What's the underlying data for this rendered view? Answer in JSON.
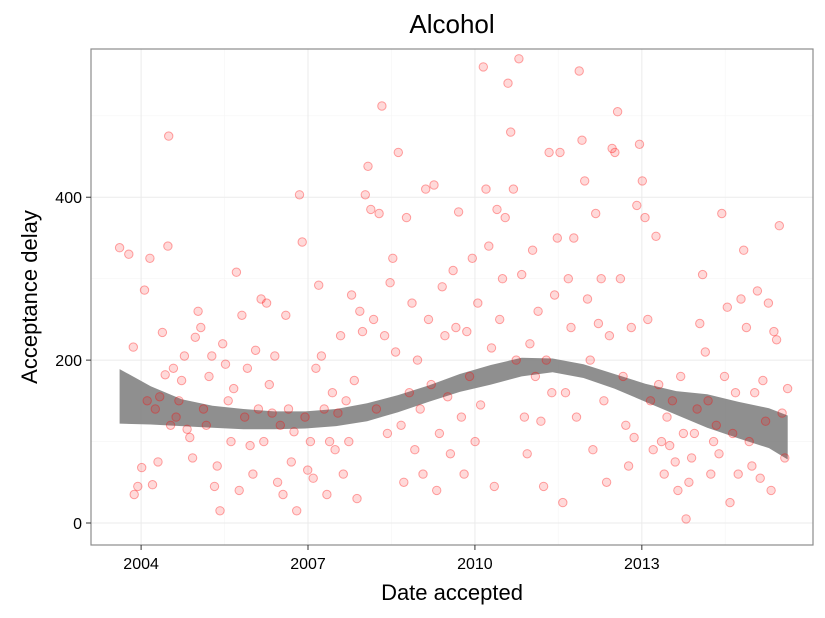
{
  "chart_data": {
    "type": "scatter",
    "title": "Alcohol",
    "xlabel": "Date accepted",
    "ylabel": "Acceptance delay",
    "x_ticks": [
      "2004",
      "2007",
      "2010",
      "2013"
    ],
    "y_ticks": [
      "0",
      "200",
      "400"
    ],
    "xlim": [
      "2003-02-06",
      "2016-01-30"
    ],
    "ylim": [
      -27,
      582
    ],
    "grid": true,
    "point_color": "#ff0000",
    "ribbon_color": "#808080",
    "points": [
      [
        "2003-08-13",
        338
      ],
      [
        "2003-10-12",
        330
      ],
      [
        "2003-11-11",
        216
      ],
      [
        "2003-11-17",
        35
      ],
      [
        "2003-12-10",
        45
      ],
      [
        "2004-01-05",
        68
      ],
      [
        "2004-01-23",
        286
      ],
      [
        "2004-02-10",
        150
      ],
      [
        "2004-02-28",
        325
      ],
      [
        "2004-03-16",
        47
      ],
      [
        "2004-04-03",
        140
      ],
      [
        "2004-04-21",
        75
      ],
      [
        "2004-05-02",
        155
      ],
      [
        "2004-05-20",
        234
      ],
      [
        "2004-06-07",
        182
      ],
      [
        "2004-06-25",
        340
      ],
      [
        "2004-06-30",
        475
      ],
      [
        "2004-07-13",
        120
      ],
      [
        "2004-07-31",
        190
      ],
      [
        "2004-08-18",
        130
      ],
      [
        "2004-09-05",
        150
      ],
      [
        "2004-09-23",
        175
      ],
      [
        "2004-10-11",
        205
      ],
      [
        "2004-10-29",
        115
      ],
      [
        "2004-11-16",
        105
      ],
      [
        "2004-12-04",
        80
      ],
      [
        "2004-12-22",
        228
      ],
      [
        "2005-01-09",
        260
      ],
      [
        "2005-01-27",
        240
      ],
      [
        "2005-02-14",
        140
      ],
      [
        "2005-03-04",
        120
      ],
      [
        "2005-03-22",
        180
      ],
      [
        "2005-04-09",
        205
      ],
      [
        "2005-04-27",
        45
      ],
      [
        "2005-05-15",
        70
      ],
      [
        "2005-06-02",
        15
      ],
      [
        "2005-06-20",
        220
      ],
      [
        "2005-07-08",
        195
      ],
      [
        "2005-07-26",
        150
      ],
      [
        "2005-08-13",
        100
      ],
      [
        "2005-08-31",
        165
      ],
      [
        "2005-09-18",
        308
      ],
      [
        "2005-10-06",
        40
      ],
      [
        "2005-10-24",
        255
      ],
      [
        "2005-11-11",
        130
      ],
      [
        "2005-11-29",
        190
      ],
      [
        "2005-12-17",
        95
      ],
      [
        "2006-01-04",
        60
      ],
      [
        "2006-01-22",
        212
      ],
      [
        "2006-02-09",
        140
      ],
      [
        "2006-02-27",
        275
      ],
      [
        "2006-03-17",
        100
      ],
      [
        "2006-04-04",
        270
      ],
      [
        "2006-04-22",
        170
      ],
      [
        "2006-05-10",
        135
      ],
      [
        "2006-05-28",
        205
      ],
      [
        "2006-06-15",
        50
      ],
      [
        "2006-07-03",
        120
      ],
      [
        "2006-07-21",
        35
      ],
      [
        "2006-08-08",
        255
      ],
      [
        "2006-08-26",
        140
      ],
      [
        "2006-09-13",
        75
      ],
      [
        "2006-10-01",
        112
      ],
      [
        "2006-10-19",
        15
      ],
      [
        "2006-11-06",
        403
      ],
      [
        "2006-11-24",
        345
      ],
      [
        "2006-12-12",
        130
      ],
      [
        "2006-12-30",
        65
      ],
      [
        "2007-01-17",
        100
      ],
      [
        "2007-02-04",
        55
      ],
      [
        "2007-02-22",
        190
      ],
      [
        "2007-03-12",
        292
      ],
      [
        "2007-03-30",
        205
      ],
      [
        "2007-04-17",
        140
      ],
      [
        "2007-05-05",
        35
      ],
      [
        "2007-05-23",
        100
      ],
      [
        "2007-06-10",
        160
      ],
      [
        "2007-06-28",
        90
      ],
      [
        "2007-07-16",
        135
      ],
      [
        "2007-08-03",
        230
      ],
      [
        "2007-08-21",
        60
      ],
      [
        "2007-09-08",
        150
      ],
      [
        "2007-09-26",
        100
      ],
      [
        "2007-10-14",
        280
      ],
      [
        "2007-11-01",
        175
      ],
      [
        "2007-11-19",
        30
      ],
      [
        "2007-12-07",
        260
      ],
      [
        "2007-12-25",
        235
      ],
      [
        "2008-01-12",
        403
      ],
      [
        "2008-01-30",
        438
      ],
      [
        "2008-02-17",
        385
      ],
      [
        "2008-03-07",
        250
      ],
      [
        "2008-03-25",
        140
      ],
      [
        "2008-04-12",
        380
      ],
      [
        "2008-04-30",
        512
      ],
      [
        "2008-05-18",
        230
      ],
      [
        "2008-06-05",
        110
      ],
      [
        "2008-06-23",
        295
      ],
      [
        "2008-07-11",
        325
      ],
      [
        "2008-07-29",
        210
      ],
      [
        "2008-08-16",
        455
      ],
      [
        "2008-09-03",
        120
      ],
      [
        "2008-09-21",
        50
      ],
      [
        "2008-10-09",
        375
      ],
      [
        "2008-10-27",
        160
      ],
      [
        "2008-11-14",
        270
      ],
      [
        "2008-12-02",
        90
      ],
      [
        "2008-12-20",
        200
      ],
      [
        "2009-01-07",
        140
      ],
      [
        "2009-01-25",
        60
      ],
      [
        "2009-02-12",
        410
      ],
      [
        "2009-03-02",
        250
      ],
      [
        "2009-03-20",
        170
      ],
      [
        "2009-04-07",
        415
      ],
      [
        "2009-04-25",
        40
      ],
      [
        "2009-05-13",
        110
      ],
      [
        "2009-05-31",
        290
      ],
      [
        "2009-06-18",
        230
      ],
      [
        "2009-07-06",
        155
      ],
      [
        "2009-07-24",
        85
      ],
      [
        "2009-08-11",
        310
      ],
      [
        "2009-08-29",
        240
      ],
      [
        "2009-09-16",
        382
      ],
      [
        "2009-10-04",
        130
      ],
      [
        "2009-10-22",
        60
      ],
      [
        "2009-11-09",
        235
      ],
      [
        "2009-11-27",
        180
      ],
      [
        "2009-12-15",
        325
      ],
      [
        "2010-01-02",
        100
      ],
      [
        "2010-01-20",
        270
      ],
      [
        "2010-02-07",
        145
      ],
      [
        "2010-02-25",
        560
      ],
      [
        "2010-03-15",
        410
      ],
      [
        "2010-04-02",
        340
      ],
      [
        "2010-04-20",
        215
      ],
      [
        "2010-05-08",
        45
      ],
      [
        "2010-05-26",
        385
      ],
      [
        "2010-06-13",
        250
      ],
      [
        "2010-07-01",
        300
      ],
      [
        "2010-07-19",
        375
      ],
      [
        "2010-08-06",
        540
      ],
      [
        "2010-08-24",
        480
      ],
      [
        "2010-09-11",
        410
      ],
      [
        "2010-09-29",
        200
      ],
      [
        "2010-10-17",
        570
      ],
      [
        "2010-11-04",
        305
      ],
      [
        "2010-11-22",
        130
      ],
      [
        "2010-12-10",
        85
      ],
      [
        "2010-12-28",
        220
      ],
      [
        "2011-01-15",
        335
      ],
      [
        "2011-02-02",
        180
      ],
      [
        "2011-02-20",
        260
      ],
      [
        "2011-03-10",
        125
      ],
      [
        "2011-03-28",
        45
      ],
      [
        "2011-04-15",
        200
      ],
      [
        "2011-05-03",
        455
      ],
      [
        "2011-05-21",
        160
      ],
      [
        "2011-06-08",
        280
      ],
      [
        "2011-06-26",
        350
      ],
      [
        "2011-07-14",
        455
      ],
      [
        "2011-08-01",
        25
      ],
      [
        "2011-08-19",
        160
      ],
      [
        "2011-09-06",
        300
      ],
      [
        "2011-09-24",
        240
      ],
      [
        "2011-10-12",
        350
      ],
      [
        "2011-10-30",
        130
      ],
      [
        "2011-11-17",
        555
      ],
      [
        "2011-12-05",
        470
      ],
      [
        "2011-12-23",
        420
      ],
      [
        "2012-01-10",
        275
      ],
      [
        "2012-01-28",
        200
      ],
      [
        "2012-02-15",
        90
      ],
      [
        "2012-03-04",
        380
      ],
      [
        "2012-03-22",
        245
      ],
      [
        "2012-04-09",
        300
      ],
      [
        "2012-04-27",
        150
      ],
      [
        "2012-05-15",
        50
      ],
      [
        "2012-06-02",
        230
      ],
      [
        "2012-06-20",
        460
      ],
      [
        "2012-07-08",
        455
      ],
      [
        "2012-07-26",
        505
      ],
      [
        "2012-08-13",
        300
      ],
      [
        "2012-08-31",
        180
      ],
      [
        "2012-09-18",
        120
      ],
      [
        "2012-10-06",
        70
      ],
      [
        "2012-10-24",
        240
      ],
      [
        "2012-11-11",
        105
      ],
      [
        "2012-11-29",
        390
      ],
      [
        "2012-12-17",
        465
      ],
      [
        "2013-01-04",
        420
      ],
      [
        "2013-01-22",
        375
      ],
      [
        "2013-02-09",
        250
      ],
      [
        "2013-02-27",
        150
      ],
      [
        "2013-03-17",
        90
      ],
      [
        "2013-04-04",
        352
      ],
      [
        "2013-04-22",
        170
      ],
      [
        "2013-05-10",
        100
      ],
      [
        "2013-05-28",
        60
      ],
      [
        "2013-06-15",
        130
      ],
      [
        "2013-07-03",
        95
      ],
      [
        "2013-07-21",
        150
      ],
      [
        "2013-08-08",
        75
      ],
      [
        "2013-08-26",
        40
      ],
      [
        "2013-09-13",
        180
      ],
      [
        "2013-10-01",
        110
      ],
      [
        "2013-10-19",
        5
      ],
      [
        "2013-11-06",
        50
      ],
      [
        "2013-11-24",
        80
      ],
      [
        "2013-12-12",
        110
      ],
      [
        "2013-12-30",
        140
      ],
      [
        "2014-01-17",
        245
      ],
      [
        "2014-02-04",
        305
      ],
      [
        "2014-02-22",
        210
      ],
      [
        "2014-03-12",
        150
      ],
      [
        "2014-03-30",
        60
      ],
      [
        "2014-04-17",
        100
      ],
      [
        "2014-05-05",
        120
      ],
      [
        "2014-05-23",
        85
      ],
      [
        "2014-06-10",
        380
      ],
      [
        "2014-06-28",
        180
      ],
      [
        "2014-07-16",
        265
      ],
      [
        "2014-08-03",
        25
      ],
      [
        "2014-08-21",
        110
      ],
      [
        "2014-09-08",
        160
      ],
      [
        "2014-09-26",
        60
      ],
      [
        "2014-10-14",
        275
      ],
      [
        "2014-11-01",
        335
      ],
      [
        "2014-11-19",
        240
      ],
      [
        "2014-12-07",
        100
      ],
      [
        "2014-12-25",
        70
      ],
      [
        "2015-01-12",
        160
      ],
      [
        "2015-01-30",
        285
      ],
      [
        "2015-02-17",
        55
      ],
      [
        "2015-03-07",
        175
      ],
      [
        "2015-03-25",
        125
      ],
      [
        "2015-04-12",
        270
      ],
      [
        "2015-04-30",
        40
      ],
      [
        "2015-05-18",
        235
      ],
      [
        "2015-06-05",
        225
      ],
      [
        "2015-06-23",
        365
      ],
      [
        "2015-07-11",
        135
      ],
      [
        "2015-07-29",
        80
      ],
      [
        "2015-08-16",
        165
      ]
    ],
    "ribbon": {
      "x": [
        "2003-08-13",
        "2004-03-04",
        "2004-09-23",
        "2005-04-14",
        "2005-11-03",
        "2006-05-25",
        "2006-12-14",
        "2007-07-05",
        "2008-01-24",
        "2008-08-14",
        "2009-03-05",
        "2009-09-24",
        "2010-04-15",
        "2010-11-04",
        "2011-05-26",
        "2011-12-15",
        "2012-07-05",
        "2013-01-24",
        "2013-08-15",
        "2014-03-06",
        "2014-09-25",
        "2015-04-16",
        "2015-08-17"
      ],
      "upper": [
        189,
        168,
        152,
        144,
        140,
        137,
        137,
        140,
        147,
        157,
        169,
        183,
        194,
        203,
        202,
        195,
        183,
        171,
        162,
        158,
        149,
        141,
        132
      ],
      "lower": [
        122,
        121,
        119,
        117,
        115,
        115,
        116,
        119,
        125,
        136,
        149,
        161,
        170,
        180,
        185,
        178,
        165,
        149,
        133,
        117,
        104,
        92,
        78
      ]
    }
  }
}
